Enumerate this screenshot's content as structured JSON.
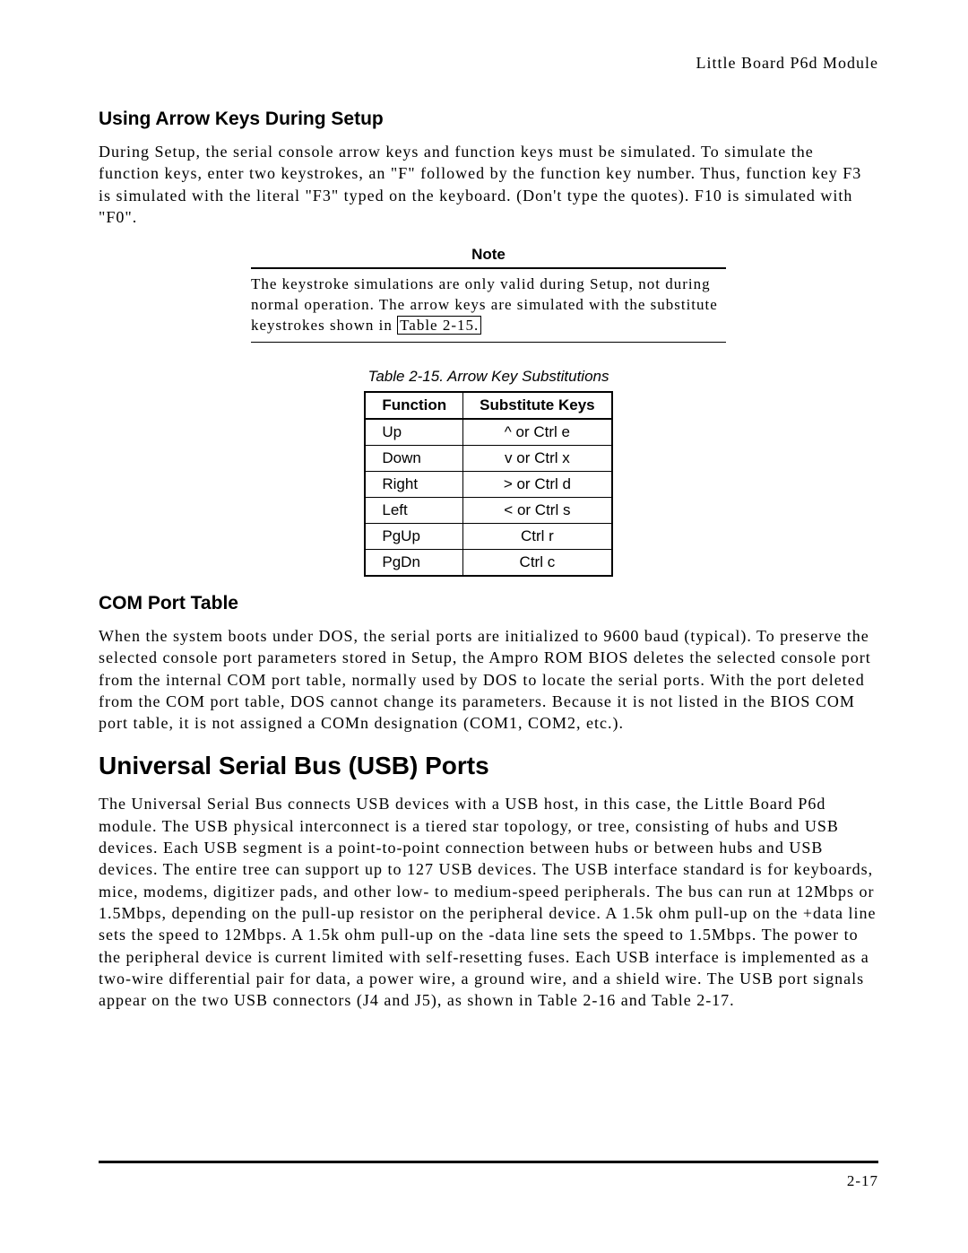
{
  "header": {
    "right_text": "Little Board P6d Module"
  },
  "section1": {
    "heading": "Using Arrow Keys During Setup",
    "para": "During Setup, the serial console arrow keys and function keys must be simulated.  To simulate the function keys, enter two keystrokes, an \"F\" followed by the function key number.  Thus, function key F3 is simulated with the literal \"F3\" typed on the keyboard.  (Don't type the quotes).  F10 is simulated with \"F0\"."
  },
  "note": {
    "title": "Note",
    "body_pre": "The keystroke simulations are only valid during Setup, not during normal operation.  The arrow keys are simulated with the substitute keystrokes shown in ",
    "link": "Table 2-15.",
    "body_post": ""
  },
  "table": {
    "caption": "Table 2-15.  Arrow Key Substitutions",
    "headers": [
      "Function",
      "Substitute Keys"
    ],
    "rows": [
      [
        "Up",
        "^ or Ctrl e"
      ],
      [
        "Down",
        "v or Ctrl x"
      ],
      [
        "Right",
        "> or Ctrl d"
      ],
      [
        "Left",
        "< or Ctrl s"
      ],
      [
        "PgUp",
        "Ctrl r"
      ],
      [
        "PgDn",
        "Ctrl c"
      ]
    ]
  },
  "section2": {
    "heading": "COM Port Table",
    "para": "When the system boots under DOS, the serial ports are initialized to 9600 baud (typical).  To preserve the selected console port parameters stored in Setup, the Ampro ROM BIOS deletes the selected console port from the internal COM port table, normally used by DOS to locate the serial ports.  With the port deleted from the COM port table, DOS cannot change its parameters.  Because it is not listed in the BIOS COM port table, it is not assigned a COMn designation (COM1, COM2, etc.)."
  },
  "section3": {
    "heading": "Universal Serial Bus (USB) Ports",
    "para": "The Universal Serial Bus connects USB devices with a USB host, in this case, the Little Board P6d module.  The USB physical interconnect is a tiered star topology, or tree, consisting of hubs and USB devices.  Each USB segment is a point-to-point connection between hubs or between hubs and USB devices.  The entire tree can support up to 127 USB devices.  The USB interface standard is for keyboards, mice, modems, digitizer pads, and other low- to medium-speed peripherals.  The bus can run at 12Mbps or 1.5Mbps, depending on the pull-up resistor on the peripheral device.  A 1.5k ohm pull-up on the +data line sets the speed to 12Mbps.  A 1.5k ohm pull-up on the -data line sets the speed to 1.5Mbps.  The power to the peripheral device is current limited with self-resetting fuses.  Each USB interface is implemented as a two-wire differential pair for data, a power wire, a ground wire, and a shield wire.  The USB port signals appear on the two USB connectors (J4 and J5), as shown in Table 2-16 and Table 2-17."
  },
  "footer": {
    "page_num": "2-17"
  }
}
